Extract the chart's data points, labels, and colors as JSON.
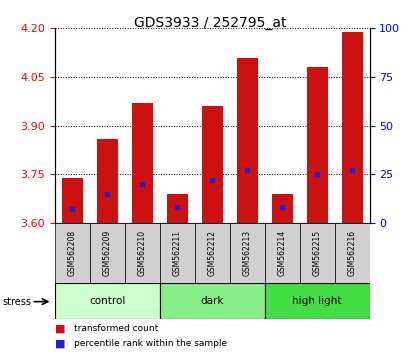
{
  "title": "GDS3933 / 252795_at",
  "samples": [
    "GSM562208",
    "GSM562209",
    "GSM562210",
    "GSM562211",
    "GSM562212",
    "GSM562213",
    "GSM562214",
    "GSM562215",
    "GSM562216"
  ],
  "groups": [
    {
      "name": "control",
      "color": "#ccffcc",
      "samples": [
        0,
        1,
        2
      ]
    },
    {
      "name": "dark",
      "color": "#88ee88",
      "samples": [
        3,
        4,
        5
      ]
    },
    {
      "name": "high light",
      "color": "#44dd44",
      "samples": [
        6,
        7,
        8
      ]
    }
  ],
  "red_values": [
    3.74,
    3.86,
    3.97,
    3.69,
    3.96,
    4.11,
    3.69,
    4.08,
    4.19
  ],
  "blue_values": [
    7,
    15,
    20,
    8,
    22,
    27,
    8,
    25,
    27
  ],
  "ymin": 3.6,
  "ymax": 4.2,
  "yticks": [
    3.6,
    3.75,
    3.9,
    4.05,
    4.2
  ],
  "y2min": 0,
  "y2max": 100,
  "y2ticks": [
    0,
    25,
    50,
    75,
    100
  ],
  "bar_color": "#cc1111",
  "blue_color": "#2222cc",
  "bar_width": 0.6,
  "label_fontsize": 8,
  "title_fontsize": 10
}
